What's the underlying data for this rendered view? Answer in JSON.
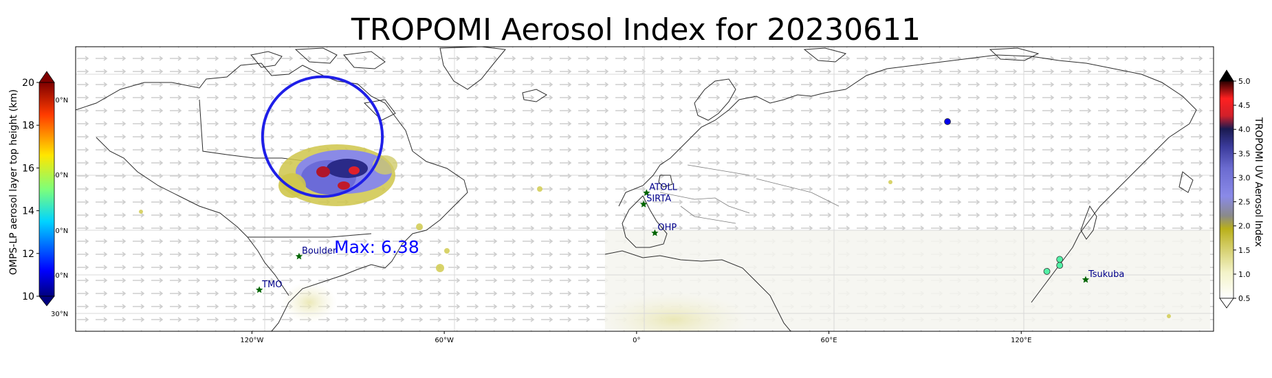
{
  "title": "TROPOMI Aerosol Index for 20230611",
  "map": {
    "max_label": "Max: 6.38",
    "lon_ticks": [
      "120°W",
      "60°W",
      "0°",
      "60°E",
      "120°E"
    ],
    "lat_ticks": [
      "70°N",
      "60°N",
      "50°N",
      "40°N",
      "30°N"
    ],
    "stations": [
      {
        "name": "ATOLL",
        "lon": 3.1,
        "lat": 50.6
      },
      {
        "name": "SIRTA",
        "lon": 2.2,
        "lat": 48.7
      },
      {
        "name": "OHP",
        "lon": 5.7,
        "lat": 43.9
      },
      {
        "name": "Boulder",
        "lon": -105.3,
        "lat": 40.0
      },
      {
        "name": "TMO",
        "lon": -117.7,
        "lat": 34.4
      },
      {
        "name": "Tsukuba",
        "lon": 140.1,
        "lat": 36.1
      }
    ],
    "highlight_circle": {
      "lon": -98,
      "lat": 60,
      "radius_deg": 10
    },
    "omps_points": [
      {
        "lon": 97,
        "lat": 62.5,
        "height_km": 11.0
      },
      {
        "lon": 128,
        "lat": 37.5,
        "height_km": 14.5
      },
      {
        "lon": 132,
        "lat": 38.5,
        "height_km": 14.5
      },
      {
        "lon": 132,
        "lat": 39.5,
        "height_km": 14.5
      }
    ],
    "colors": {
      "station_star": "#006400",
      "station_label": "#00008b",
      "max_label": "#0000ff",
      "circle": "#1f1fe8"
    }
  },
  "colorbar_left": {
    "label": "OMPS-LP aerosol layer top height (km)",
    "ticks": [
      "20",
      "18",
      "16",
      "14",
      "12",
      "10"
    ],
    "range": [
      10,
      20
    ]
  },
  "colorbar_right": {
    "label": "TROPOMI UV Aerosol Index",
    "ticks": [
      "5.0",
      "4.5",
      "4.0",
      "3.5",
      "3.0",
      "2.5",
      "2.0",
      "1.5",
      "1.0",
      "0.5"
    ],
    "range": [
      0.5,
      5.0
    ]
  }
}
